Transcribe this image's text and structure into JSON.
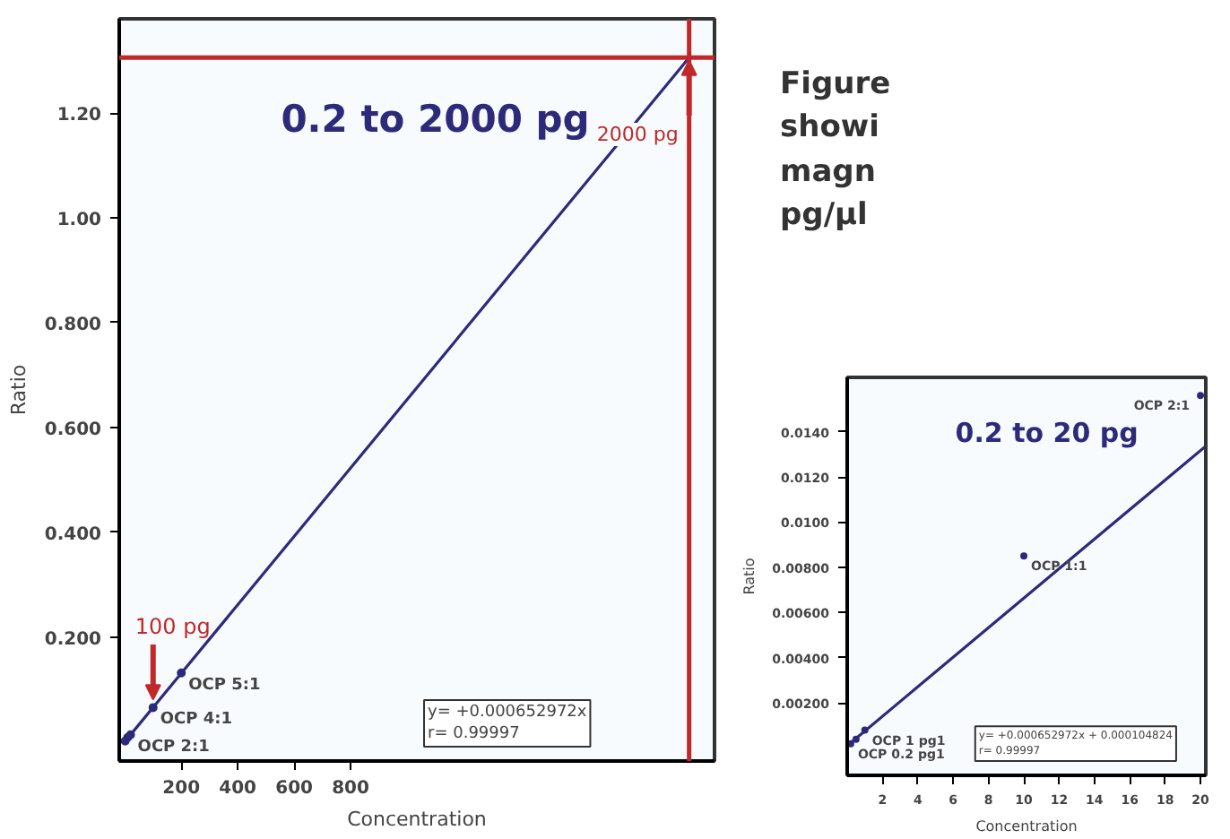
{
  "chart_data": [
    {
      "type": "scatter",
      "title": "0.2 to 2000 pg",
      "xlabel": "Concentration",
      "ylabel": "Ratio",
      "xlim": [
        -20,
        2090
      ],
      "ylim": [
        -0.037,
        1.38
      ],
      "xticks": [
        200,
        400,
        600,
        800
      ],
      "yticks": [
        {
          "value": 0.2,
          "label": "0.200"
        },
        {
          "value": 0.4,
          "label": "0.400"
        },
        {
          "value": 0.6,
          "label": "0.600"
        },
        {
          "value": 0.8,
          "label": "0.800"
        },
        {
          "value": 1.0,
          "label": "1.00"
        },
        {
          "value": 1.2,
          "label": "1.20"
        }
      ],
      "grid": false,
      "series": [
        {
          "color": "#2e2a7a",
          "marker": "circle",
          "x": [
            1,
            10,
            20,
            100,
            200
          ],
          "values": [
            0.001,
            0.008,
            0.013,
            0.065,
            0.131
          ]
        },
        {
          "type": "line",
          "marker": "none",
          "color": "#2e2a7a",
          "x": [
            0,
            2000
          ],
          "values": [
            0.0,
            1.306
          ]
        }
      ],
      "ref_lines": [
        {
          "axis": "y",
          "value": 1.306,
          "label": null,
          "color": "#c0282a"
        },
        {
          "axis": "x",
          "value": 2000,
          "label": null,
          "color": "#c0282a"
        }
      ],
      "annotations": [
        {
          "text": "OCP 2:1",
          "x": 20,
          "y": 0.013
        },
        {
          "text": "OCP 4:1",
          "x": 100,
          "y": 0.065
        },
        {
          "text": "OCP 5:1",
          "x": 200,
          "y": 0.131
        },
        {
          "text": "100 pg",
          "x": 100,
          "y": 0.065
        },
        {
          "text": "2000 pg",
          "x": 2000,
          "y": 1.3
        },
        "y= +0.000652972x\nr= 0.99997",
        "Figure\nshowi\nmagn\npg/µl"
      ]
    },
    {
      "type": "scatter",
      "title": "0.2 to 20 pg",
      "xlabel": "Concentration",
      "ylabel": "Ratio",
      "xlim": [
        0,
        20.3
      ],
      "ylim": [
        -0.0012,
        0.0164
      ],
      "xticks": [
        2,
        4,
        6,
        8,
        10,
        12,
        14,
        16,
        18,
        20
      ],
      "yticks": [
        {
          "value": 0.002,
          "label": "0.00200"
        },
        {
          "value": 0.004,
          "label": "0.00400"
        },
        {
          "value": 0.006,
          "label": "0.00600"
        },
        {
          "value": 0.008,
          "label": "0.00800"
        },
        {
          "value": 0.01,
          "label": "0.0100"
        },
        {
          "value": 0.012,
          "label": "0.0120"
        },
        {
          "value": 0.014,
          "label": "0.0140"
        }
      ],
      "grid": false,
      "series": [
        {
          "color": "#2e2a7a",
          "marker": "circle",
          "x": [
            0.2,
            0.5,
            1,
            10,
            20
          ],
          "values": [
            0.0002,
            0.0004,
            0.0008,
            0.0085,
            0.0156
          ]
        },
        {
          "type": "line",
          "marker": "none",
          "color": "#2e2a7a",
          "x": [
            0.2,
            20.3
          ],
          "values": [
            0.00024,
            0.01336
          ]
        }
      ],
      "annotations": [
        {
          "text": "OCP 0.2 pg1",
          "x": 0.2,
          "y": 0.0002
        },
        {
          "text": "OCP 1 pg1",
          "x": 1,
          "y": 0.0008
        },
        {
          "text": "OCP 1:1",
          "x": 10,
          "y": 0.0085
        },
        {
          "text": "OCP 2:1",
          "x": 20,
          "y": 0.0156
        },
        "y= +0.000652972x + 0.000104824\nr= 0.99997"
      ]
    }
  ]
}
